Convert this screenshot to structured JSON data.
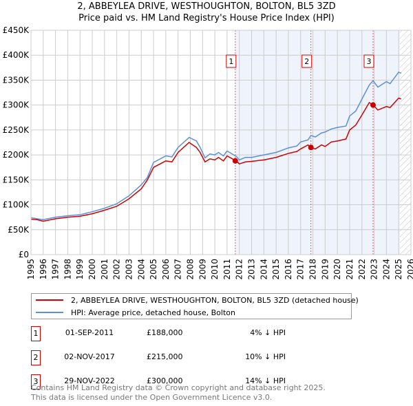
{
  "chart_data": {
    "type": "line",
    "title": "2, ABBEYLEA DRIVE, WESTHOUGHTON, BOLTON, BL5 3ZD",
    "subtitle": "Price paid vs. HM Land Registry's House Price Index (HPI)",
    "xlim": [
      1995,
      2026
    ],
    "ylim": [
      0,
      450000
    ],
    "x_ticks": [
      "1995",
      "1996",
      "1997",
      "1998",
      "1999",
      "2000",
      "2001",
      "2002",
      "2003",
      "2004",
      "2005",
      "2006",
      "2007",
      "2008",
      "2009",
      "2010",
      "2011",
      "2012",
      "2013",
      "2014",
      "2015",
      "2016",
      "2017",
      "2018",
      "2019",
      "2020",
      "2021",
      "2022",
      "2023",
      "2024",
      "2025",
      "2026"
    ],
    "y_ticks": [
      "£0",
      "£50K",
      "£100K",
      "£150K",
      "£200K",
      "£250K",
      "£300K",
      "£350K",
      "£400K",
      "£450K"
    ],
    "grid": true,
    "series": [
      {
        "name": "2, ABBEYLEA DRIVE, WESTHOUGHTON, BOLTON, BL5 3ZD (detached house)",
        "color": "#cc0000",
        "x": [
          1995,
          1995.5,
          1996,
          1997,
          1998,
          1999,
          2000,
          2001,
          2002,
          2003,
          2004,
          2004.5,
          2005,
          2006,
          2006.5,
          2007,
          2007.9,
          2008.5,
          2008.8,
          2009.2,
          2009.6,
          2010,
          2010.3,
          2010.7,
          2011,
          2011.75,
          2012,
          2012.5,
          2013,
          2014,
          2015,
          2016,
          2016.7,
          2017,
          2017.6,
          2017.84,
          2018.2,
          2018.7,
          2019,
          2019.5,
          2020,
          2020.7,
          2021,
          2021.5,
          2022,
          2022.6,
          2022.91,
          2023.3,
          2024,
          2024.3,
          2025,
          2025.2
        ],
        "y": [
          71000,
          70000,
          67000,
          72000,
          75000,
          77000,
          82000,
          89000,
          97000,
          112000,
          132000,
          150000,
          175000,
          188000,
          186000,
          205000,
          225000,
          215000,
          205000,
          186000,
          192000,
          190000,
          195000,
          188000,
          198000,
          188000,
          182000,
          186000,
          187000,
          190000,
          195000,
          203000,
          207000,
          212000,
          220000,
          215000,
          212000,
          220000,
          217000,
          226000,
          228000,
          232000,
          250000,
          260000,
          280000,
          305000,
          300000,
          290000,
          297000,
          295000,
          314000,
          312000
        ]
      },
      {
        "name": "HPI: Average price, detached house, Bolton",
        "color": "#5b8fd6",
        "x": [
          1995,
          1995.5,
          1996,
          1997,
          1998,
          1999,
          2000,
          2001,
          2002,
          2003,
          2004,
          2004.5,
          2005,
          2006,
          2006.5,
          2007,
          2007.9,
          2008.5,
          2008.8,
          2009.2,
          2009.6,
          2010,
          2010.3,
          2010.7,
          2011,
          2011.75,
          2012,
          2012.5,
          2013,
          2014,
          2015,
          2016,
          2016.7,
          2017,
          2017.6,
          2017.84,
          2018.2,
          2018.7,
          2019,
          2019.5,
          2020,
          2020.7,
          2021,
          2021.5,
          2022,
          2022.6,
          2022.91,
          2023.3,
          2024,
          2024.3,
          2025,
          2025.2
        ],
        "y": [
          74000,
          72000,
          70000,
          75000,
          78000,
          80000,
          86000,
          93000,
          102000,
          118000,
          140000,
          155000,
          185000,
          198000,
          196000,
          215000,
          235000,
          228000,
          215000,
          194000,
          202000,
          200000,
          205000,
          198000,
          208000,
          197000,
          190000,
          195000,
          195000,
          200000,
          205000,
          214000,
          218000,
          226000,
          230000,
          239000,
          236000,
          244000,
          246000,
          252000,
          255000,
          258000,
          278000,
          288000,
          312000,
          340000,
          349000,
          336000,
          347000,
          343000,
          366000,
          364000
        ]
      }
    ],
    "sales": [
      {
        "label": "1",
        "x": 2011.67,
        "price": 188000,
        "date": "01-SEP-2011",
        "price_text": "£188,000",
        "hpi_text": "4% ↓ HPI"
      },
      {
        "label": "2",
        "x": 2017.84,
        "price": 215000,
        "date": "02-NOV-2017",
        "price_text": "£215,000",
        "hpi_text": "10% ↓ HPI"
      },
      {
        "label": "3",
        "x": 2022.91,
        "price": 300000,
        "date": "29-NOV-2022",
        "price_text": "£300,000",
        "hpi_text": "14% ↓ HPI"
      }
    ],
    "shaded_from": 2011.67,
    "data_end": 2025.1
  },
  "footer": {
    "line1": "Contains HM Land Registry data © Crown copyright and database right 2025.",
    "line2": "This data is licensed under the Open Government Licence v3.0."
  }
}
